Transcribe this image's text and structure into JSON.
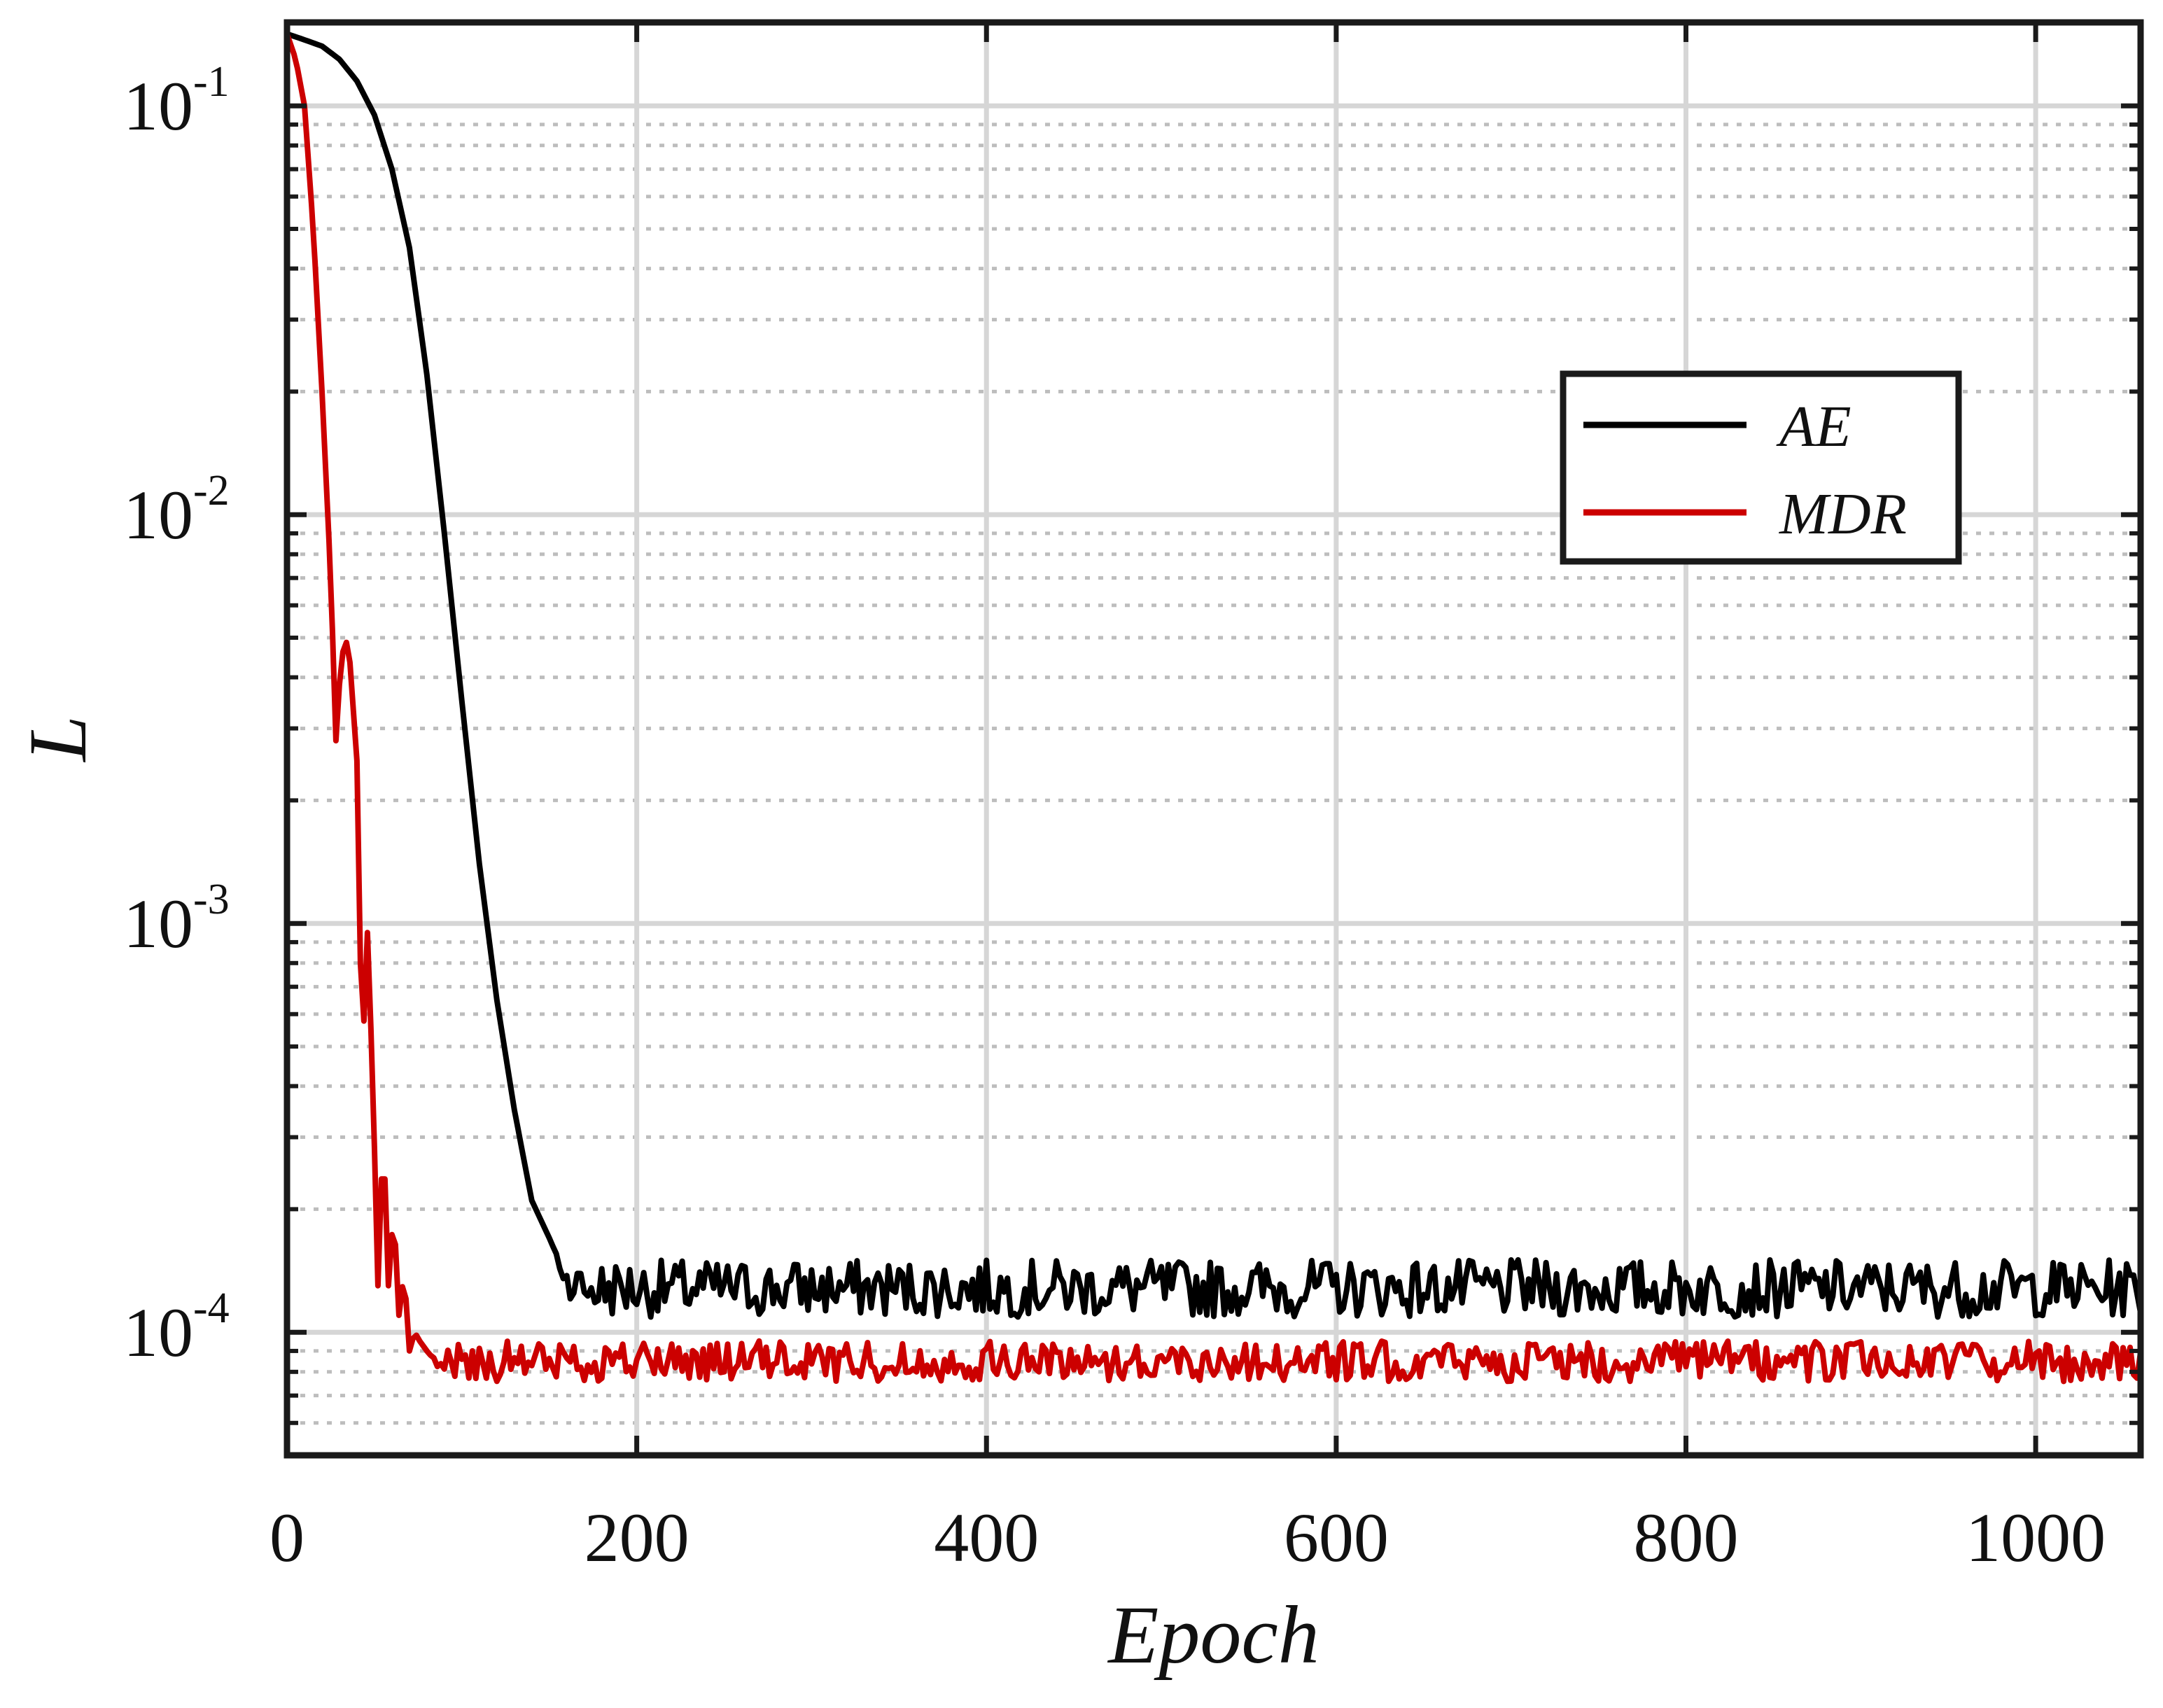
{
  "chart_data": {
    "type": "line",
    "title": "",
    "xlabel": "Epoch",
    "ylabel": "L",
    "xlim": [
      0,
      1060
    ],
    "ylim": [
      5e-05,
      0.16
    ],
    "yscale": "log",
    "x_ticks": [
      0,
      200,
      400,
      600,
      800,
      1000
    ],
    "x_tick_labels": [
      "0",
      "200",
      "400",
      "600",
      "800",
      "1000"
    ],
    "y_ticks": [
      {
        "value": 0.1,
        "base": "10",
        "exp": "-1"
      },
      {
        "value": 0.01,
        "base": "10",
        "exp": "-2"
      },
      {
        "value": 0.001,
        "base": "10",
        "exp": "-3"
      },
      {
        "value": 0.0001,
        "base": "10",
        "exp": "-4"
      }
    ],
    "grid": true,
    "minor_grid": true,
    "legend_position": "top-right",
    "series": [
      {
        "name": "AE",
        "color": "#000000",
        "x": [
          0,
          10,
          20,
          30,
          40,
          50,
          60,
          70,
          80,
          90,
          100,
          110,
          120,
          130,
          140,
          150,
          155,
          160,
          165,
          170,
          180,
          200,
          250,
          300,
          400,
          500,
          600,
          700,
          800,
          900,
          1000,
          1060
        ],
        "y": [
          0.15,
          0.145,
          0.14,
          0.13,
          0.115,
          0.095,
          0.07,
          0.045,
          0.022,
          0.009,
          0.0035,
          0.0014,
          0.00065,
          0.00035,
          0.00021,
          0.00017,
          0.00015,
          0.000135,
          0.00013,
          0.000128,
          0.000128,
          0.000128,
          0.000128,
          0.000128,
          0.000128,
          0.000128,
          0.000128,
          0.000128,
          0.000128,
          0.000128,
          0.000128,
          0.000128
        ],
        "noise": 0.07
      },
      {
        "name": "MDR",
        "color": "#cc0000",
        "x": [
          0,
          5,
          10,
          15,
          20,
          25,
          28,
          31,
          35,
          40,
          43,
          46,
          49,
          52,
          55,
          58,
          61,
          64,
          67,
          70,
          73,
          76,
          80,
          85,
          90,
          100,
          150,
          200,
          300,
          400,
          500,
          600,
          700,
          800,
          900,
          1000,
          1060
        ],
        "y": [
          0.15,
          0.13,
          0.1,
          0.05,
          0.02,
          0.007,
          0.0028,
          0.0045,
          0.005,
          0.0025,
          0.00045,
          0.00095,
          0.00042,
          0.00013,
          0.00032,
          0.00013,
          0.0002,
          0.00011,
          0.00014,
          9e-05,
          0.0001,
          9.5e-05,
          9e-05,
          8.5e-05,
          8.5e-05,
          8.5e-05,
          8.5e-05,
          8.5e-05,
          8.5e-05,
          8.5e-05,
          8.5e-05,
          8.5e-05,
          8.5e-05,
          8.5e-05,
          8.5e-05,
          8.5e-05,
          8.5e-05
        ],
        "noise": 0.05
      }
    ]
  }
}
